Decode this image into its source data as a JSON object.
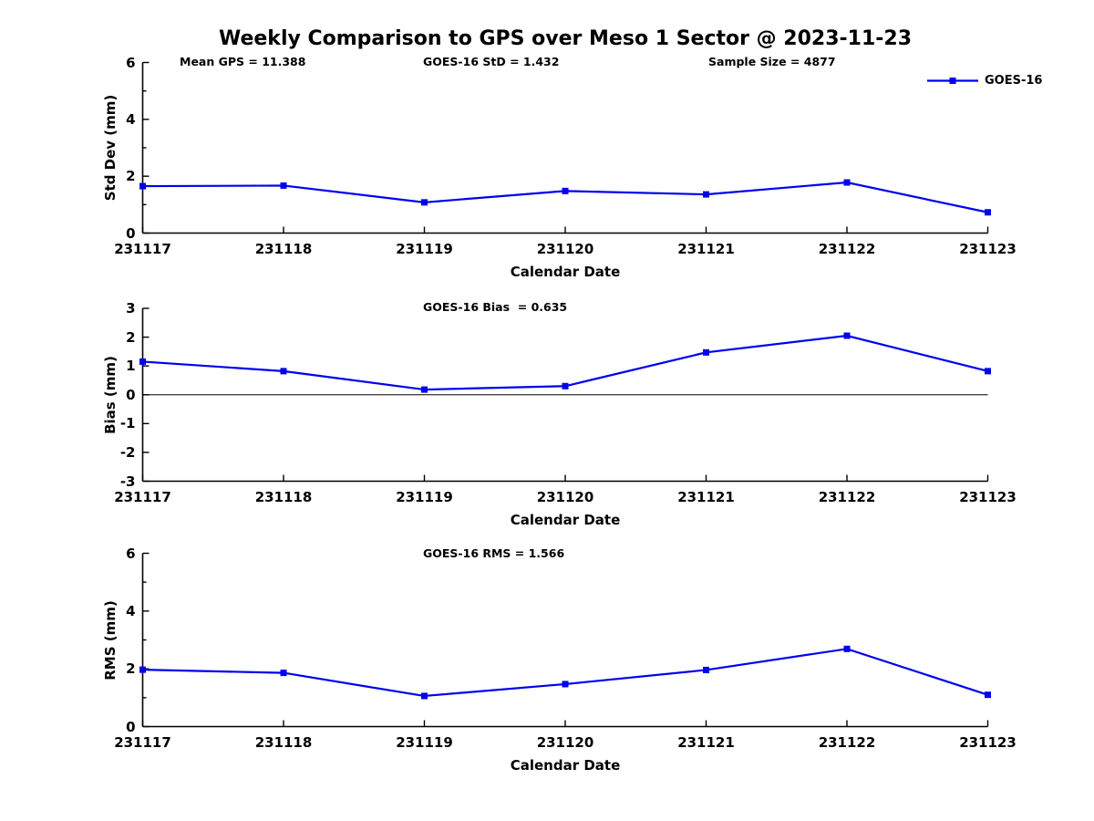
{
  "title": "Weekly Comparison to GPS over Meso 1 Sector @ 2023-11-23",
  "colors": {
    "series": "#0000ee",
    "axis": "#000000",
    "text": "#000000",
    "background": "#ffffff"
  },
  "legend": {
    "label": "GOES-16",
    "position": "top-right"
  },
  "stats": {
    "mean_gps": 11.388,
    "goes16_std": 1.432,
    "sample_size": 4877,
    "goes16_bias": 0.635,
    "goes16_rms": 1.566
  },
  "chart_data": [
    {
      "type": "line",
      "ylabel": "Std Dev (mm)",
      "xlabel": "Calendar Date",
      "categories": [
        "231117",
        "231118",
        "231119",
        "231120",
        "231121",
        "231122",
        "231123"
      ],
      "series": [
        {
          "name": "GOES-16",
          "color": "#0000ee",
          "marker": "square",
          "values": [
            1.65,
            1.67,
            1.08,
            1.48,
            1.36,
            1.78,
            0.73
          ]
        }
      ],
      "ylim": [
        0,
        6
      ],
      "yticks": [
        0,
        2,
        4,
        6
      ],
      "yticks_minor": [
        1,
        3,
        5
      ],
      "grid": false,
      "zero_line": false,
      "legend_position": "top-right",
      "annotations": [
        "Mean GPS = 11.388",
        "GOES-16 StD = 1.432",
        "Sample Size = 4877"
      ]
    },
    {
      "type": "line",
      "ylabel": "Bias (mm)",
      "xlabel": "Calendar Date",
      "categories": [
        "231117",
        "231118",
        "231119",
        "231120",
        "231121",
        "231122",
        "231123"
      ],
      "series": [
        {
          "name": "GOES-16",
          "color": "#0000ee",
          "marker": "square",
          "values": [
            1.15,
            0.82,
            0.18,
            0.3,
            1.47,
            2.05,
            0.82
          ]
        }
      ],
      "ylim": [
        -3,
        3
      ],
      "yticks": [
        -3,
        -2,
        -1,
        0,
        1,
        2,
        3
      ],
      "yticks_minor": [],
      "grid": false,
      "zero_line": true,
      "legend_position": "none",
      "annotations": [
        "GOES-16 Bias  = 0.635"
      ]
    },
    {
      "type": "line",
      "ylabel": "RMS (mm)",
      "xlabel": "Calendar Date",
      "categories": [
        "231117",
        "231118",
        "231119",
        "231120",
        "231121",
        "231122",
        "231123"
      ],
      "series": [
        {
          "name": "GOES-16",
          "color": "#0000ee",
          "marker": "square",
          "values": [
            1.97,
            1.86,
            1.06,
            1.47,
            1.96,
            2.69,
            1.1
          ]
        }
      ],
      "ylim": [
        0,
        6
      ],
      "yticks": [
        0,
        2,
        4,
        6
      ],
      "yticks_minor": [
        1,
        3,
        5
      ],
      "grid": false,
      "zero_line": false,
      "legend_position": "none",
      "annotations": [
        "GOES-16 RMS = 1.566"
      ]
    }
  ]
}
